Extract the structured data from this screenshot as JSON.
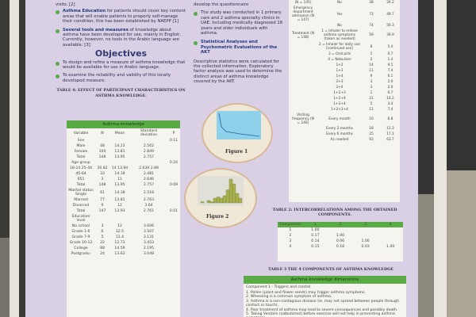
{
  "intro": {
    "visits": "visits. [2]",
    "edu_bold": "Asthma Education",
    "edu": " for patients should cover key content areas that will enable patients to properly self-manage their condition, this has been established by NAEPP [1]",
    "tools_bold": "Several tools and measures",
    "tools": " of knowledge about asthma have been developed for use, mainly in English. Currently, however, no tools in the Arabic language are available. [3]"
  },
  "objectives": {
    "title": "Objectives",
    "items": [
      "To design and refine a measure of asthma knowledge that would be available for use in Arabic language.",
      "To examine the reliability and validity of this locally developed measure."
    ]
  },
  "methods": {
    "top": "develop the questionnaire",
    "study": "The study was conducted in 1 primary care and 2 asthma specialty clinics in UAE. Including medically diagnosed 18 years and older individuals with asthma.",
    "stats_title": "Statistical Analyses and Psychometric Evaluations of the AKT",
    "stats": "Descriptive statistics were calculated for the collected information. Exploratory factor analysis was used to determine the distinct areas of asthma knowledge covered by the AKT."
  },
  "figures": {
    "fig1": "Figure 1",
    "fig2": "Figure 2"
  },
  "table4": {
    "caption": "TABLE 4: EFFECT OF PARTICIPANT CHARACTERISTICS ON ASTHMA KNOWLEDGE.",
    "header": "Asthma knowledge",
    "columns": [
      "Variable",
      "N",
      "Mean",
      "Standard deviation",
      "P"
    ],
    "rows": [
      [
        "Sex",
        "",
        "",
        "",
        "0.11"
      ],
      [
        "Male",
        "48",
        "14.23",
        "2.562",
        ""
      ],
      [
        "Female",
        "100",
        "13.81",
        "2.849",
        ""
      ],
      [
        "Total",
        "148",
        "13.95",
        "2.757",
        ""
      ],
      [
        "Age group",
        "",
        "",
        "",
        "0.16"
      ],
      [
        "18-24 25-44",
        "30 82",
        "14 13.94",
        "2.639 2.89",
        ""
      ],
      [
        "45-64",
        "33",
        "14.18",
        "2.481",
        ""
      ],
      [
        "651",
        "3",
        "11",
        "2.646",
        ""
      ],
      [
        "Total",
        "148",
        "13.95",
        "2.757",
        "0.09"
      ],
      [
        "Marital status Single",
        "61",
        "14.38",
        "2.518",
        ""
      ],
      [
        "Married",
        "77",
        "13.81",
        "2.763",
        ""
      ],
      [
        "Divorced",
        "9",
        "12",
        "3.64",
        ""
      ],
      [
        "Total",
        "147",
        "13.93",
        "2.761",
        "0.01"
      ],
      [
        "Education level",
        "",
        "",
        "",
        ""
      ],
      [
        "No school",
        "3",
        "12",
        "3.606",
        ""
      ],
      [
        "Grade 1-6",
        "6",
        "12.5",
        "3.507",
        ""
      ],
      [
        "Grade 7-9",
        "5",
        "12.4",
        "3.131",
        ""
      ],
      [
        "Grade 10-12",
        "22",
        "12.73",
        "3.453",
        ""
      ],
      [
        "College",
        "88",
        "14.59",
        "2.195",
        ""
      ],
      [
        "Postgradu-",
        "24",
        "13.63",
        "3.048",
        ""
      ]
    ]
  },
  "table1": {
    "rows": [
      [
        "(N = 145)",
        "No",
        "38",
        "26.2"
      ],
      [
        "Emergency department admission (N = 147)",
        "Yes",
        "73",
        "49.7"
      ],
      [
        "",
        "No",
        "74",
        "50.3"
      ],
      [
        "Treatment (N = 148)",
        "1 = Inhaler to relieve asthma symptoms [taken as needed]",
        "59",
        "39.9"
      ],
      [
        "",
        "2 = Inhaler for daily use [continued use]",
        "8",
        "5.4"
      ],
      [
        "",
        "3 = Oral pills",
        "1",
        "0.7"
      ],
      [
        "",
        "4 = Nebulizer",
        "2",
        "1.4"
      ],
      [
        "",
        "1+2",
        "14",
        "9.5"
      ],
      [
        "",
        "1+3",
        "11",
        "7.4"
      ],
      [
        "",
        "1+4",
        "9",
        "6.1"
      ],
      [
        "",
        "2+3",
        "3",
        "2.0"
      ],
      [
        "",
        "2+4",
        "3",
        "2.0"
      ],
      [
        "",
        "1+2+3",
        "1",
        "0.7"
      ],
      [
        "",
        "1+2+4",
        "21",
        "14.2"
      ],
      [
        "",
        "1+3+4",
        "5",
        "3.4"
      ],
      [
        "",
        "1+2+3+4",
        "11",
        "7.4"
      ],
      [
        "Visiting frequency (N = 146)",
        "Every month",
        "10",
        "6.8"
      ],
      [
        "",
        "Every 2 months",
        "18",
        "12.3"
      ],
      [
        "",
        "Every 6 months",
        "25",
        "17.1"
      ],
      [
        "",
        "As needed",
        "93",
        "63.7"
      ]
    ]
  },
  "table2": {
    "caption": "TABLE 2: INTERCORRELATIONS AMONG THE OBTAINED COMPONENTS.",
    "columns": [
      "Component",
      "1",
      "2",
      "3",
      "4"
    ],
    "rows": [
      [
        "1",
        "1.00",
        "",
        "",
        ""
      ],
      [
        "2",
        "0.17",
        "1.00",
        "",
        ""
      ],
      [
        "3",
        "0.14",
        "0.06",
        "1.00",
        ""
      ],
      [
        "4",
        "0.15",
        "0.18",
        "0.03",
        "1.00"
      ]
    ]
  },
  "table3": {
    "caption": "TABLE 3  THE 4 COMPONENTS OF ASTHMA KNOWLEDGE",
    "header": "Asthma knowledge dimensions",
    "component": "Component 1 - Triggers and control",
    "items": [
      "1. Pollen (plant and flower seeds) may trigger asthma symptoms.",
      "2. Wheezing is a common symptom of asthma.",
      "3. Asthma is a non-contagious disease (ie, may not spread between people through contact or touch).",
      "4. Poor treatment of asthma may lead to severe consequences and possibly death.",
      "5. Taking Ventolin (salbutamol) before exercise will not help in preventing asthma symptoms.",
      "6. Using more Ventolin (salbutamol) puffs alone may improve asthma condition."
    ]
  },
  "colors": {
    "poster": "#d9d0e6",
    "green": "#5aab45",
    "title": "#303a70"
  }
}
